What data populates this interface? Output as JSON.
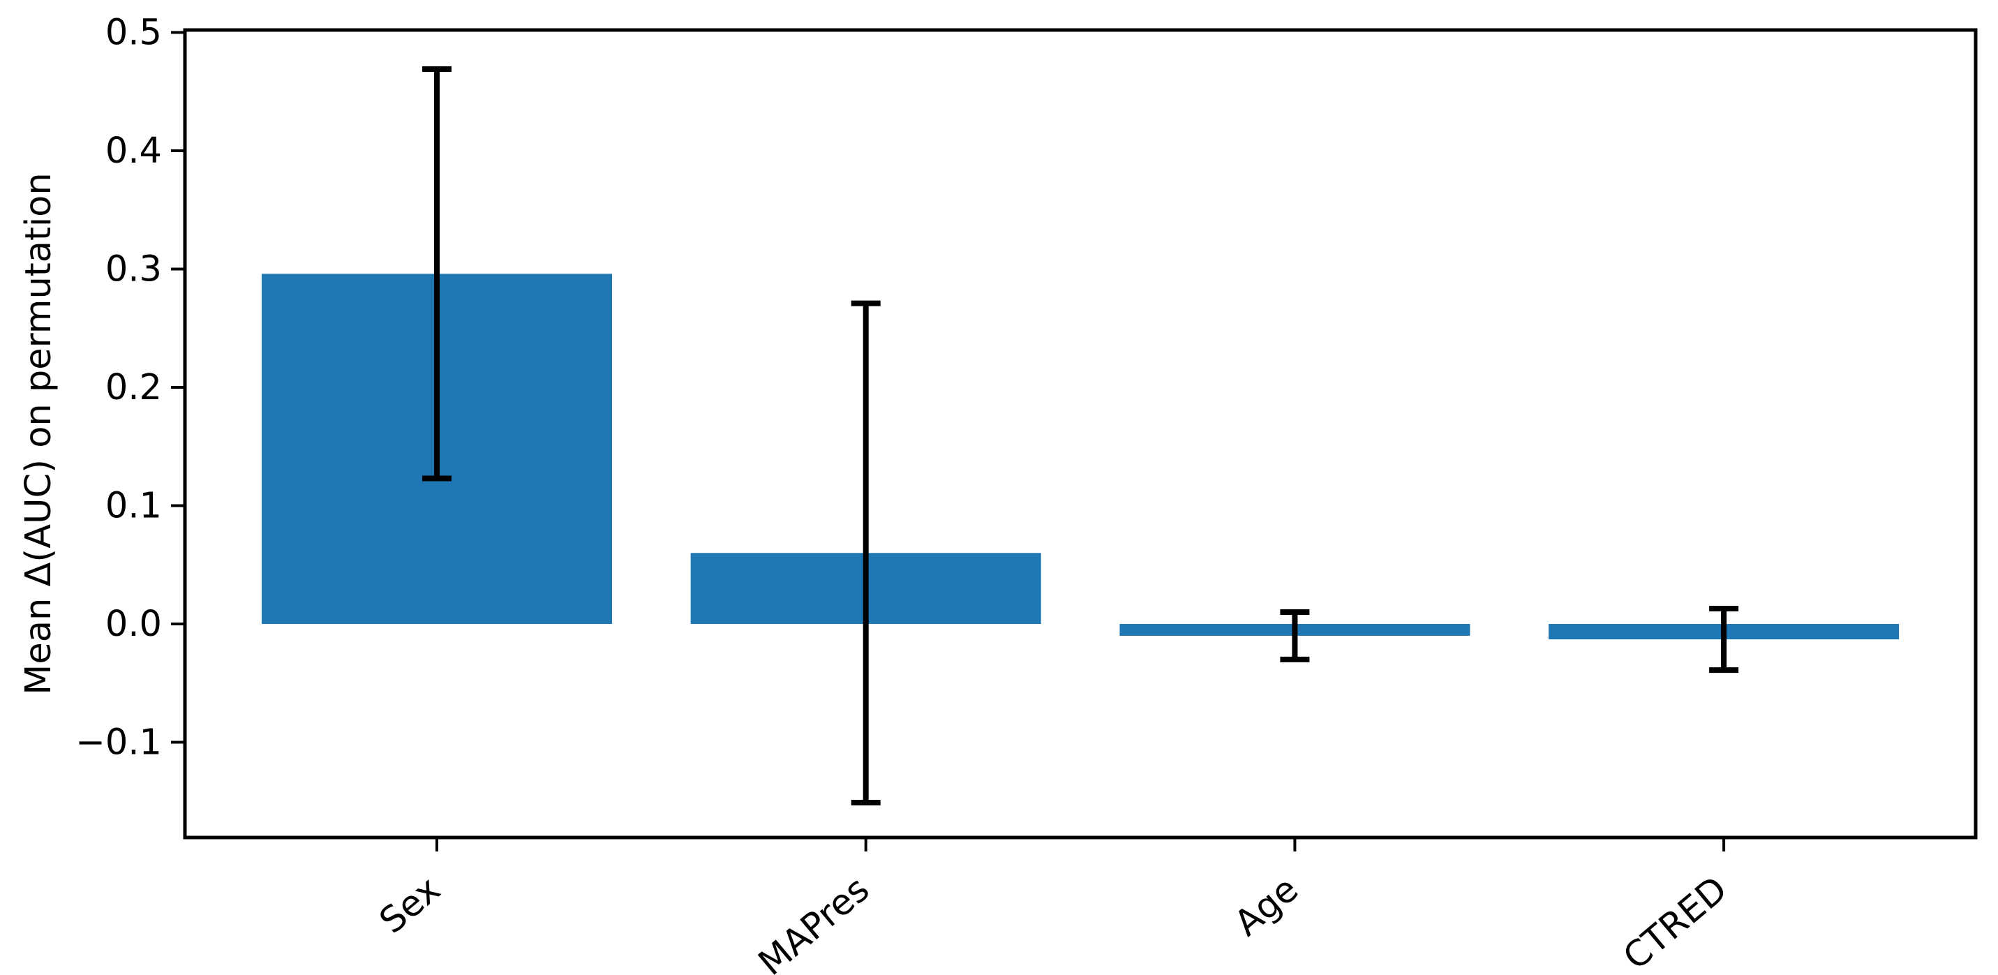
{
  "figure": {
    "background": "#ffffff"
  },
  "chart_data": {
    "type": "bar",
    "title": "",
    "categories": [
      "Sex",
      "MAPres",
      "Age",
      "CTRED"
    ],
    "values": [
      0.296,
      0.06,
      -0.01,
      -0.013
    ],
    "error_bars": [
      0.173,
      0.211,
      0.02,
      0.026
    ],
    "xlabel": "",
    "ylabel": "Mean Δ(AUC) on permutation",
    "ylim": [
      -0.181,
      0.502
    ],
    "yticks": [
      0.5,
      0.4,
      0.3,
      0.2,
      0.1,
      0.0,
      -0.1
    ],
    "ytick_labels": [
      "0.5",
      "0.4",
      "0.3",
      "0.2",
      "0.1",
      "0.0",
      "−0.1"
    ],
    "xtick_rotation_deg": 40,
    "grid": false,
    "legend": null,
    "bar_color": "#1f77b4",
    "error_color": "#000000",
    "spine_color": "#000000",
    "background_color": "#ffffff"
  }
}
